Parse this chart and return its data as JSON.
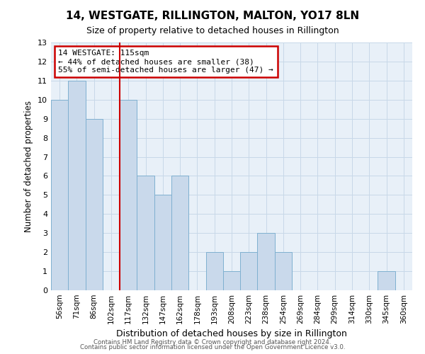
{
  "title": "14, WESTGATE, RILLINGTON, MALTON, YO17 8LN",
  "subtitle": "Size of property relative to detached houses in Rillington",
  "xlabel": "Distribution of detached houses by size in Rillington",
  "ylabel": "Number of detached properties",
  "bins": [
    "56sqm",
    "71sqm",
    "86sqm",
    "102sqm",
    "117sqm",
    "132sqm",
    "147sqm",
    "162sqm",
    "178sqm",
    "193sqm",
    "208sqm",
    "223sqm",
    "238sqm",
    "254sqm",
    "269sqm",
    "284sqm",
    "299sqm",
    "314sqm",
    "330sqm",
    "345sqm",
    "360sqm"
  ],
  "values": [
    10,
    11,
    9,
    0,
    10,
    6,
    5,
    6,
    0,
    2,
    1,
    2,
    3,
    2,
    0,
    0,
    0,
    0,
    0,
    1,
    0
  ],
  "bar_color": "#c9d9eb",
  "bar_edgecolor": "#7fb0d0",
  "highlight_line_color": "#cc0000",
  "highlight_bin_index": 4,
  "annotation_box_text": "14 WESTGATE: 115sqm\n← 44% of detached houses are smaller (38)\n55% of semi-detached houses are larger (47) →",
  "annotation_box_color": "#cc0000",
  "annotation_text_fontsize": 8,
  "ylim": [
    0,
    13
  ],
  "yticks": [
    0,
    1,
    2,
    3,
    4,
    5,
    6,
    7,
    8,
    9,
    10,
    11,
    12,
    13
  ],
  "grid_color": "#c8d8e8",
  "bg_color": "#e8f0f8",
  "footer1": "Contains HM Land Registry data © Crown copyright and database right 2024.",
  "footer2": "Contains public sector information licensed under the Open Government Licence v3.0."
}
